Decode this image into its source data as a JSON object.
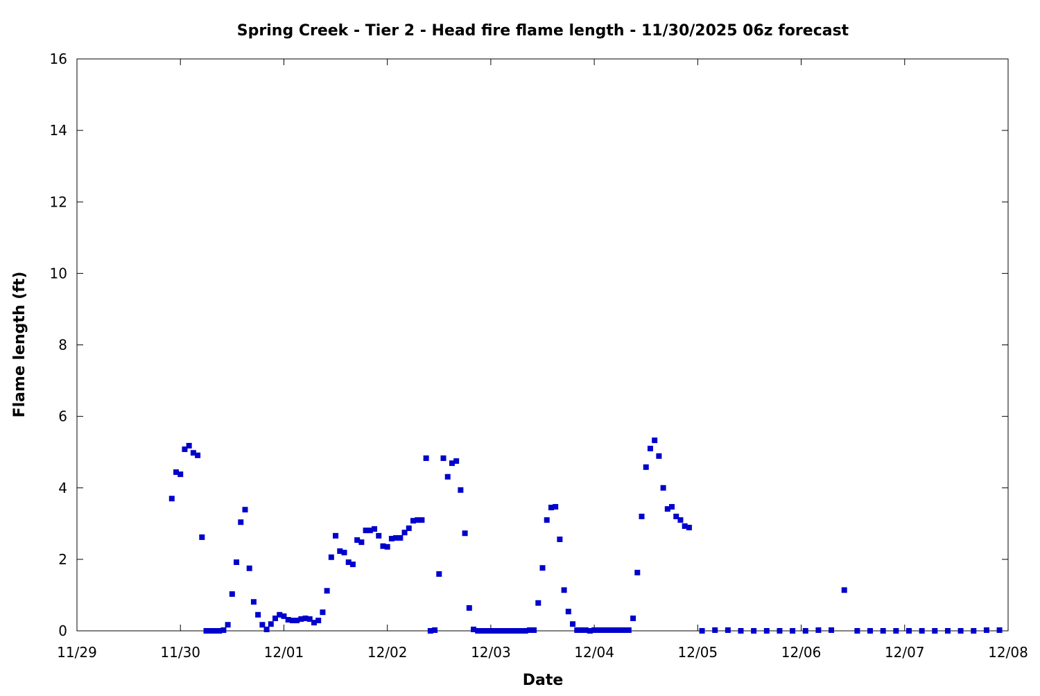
{
  "chart_data": {
    "type": "scatter",
    "title": "Spring Creek - Tier 2 - Head fire flame length - 11/30/2025 06z forecast",
    "xlabel": "Date",
    "ylabel": "Flame length (ft)",
    "xlim": [
      "11/29",
      "12/08"
    ],
    "ylim": [
      0,
      16
    ],
    "x_ticks": [
      "11/29",
      "11/30",
      "12/01",
      "12/02",
      "12/03",
      "12/04",
      "12/05",
      "12/06",
      "12/07",
      "12/08"
    ],
    "y_ticks": [
      "0",
      "2",
      "4",
      "6",
      "8",
      "10",
      "12",
      "14",
      "16"
    ],
    "grid": false,
    "legend": "none",
    "marker": "square",
    "color": "#0000cc",
    "points": [
      [
        "11/29 22:00",
        3.7
      ],
      [
        "11/29 23:00",
        4.44
      ],
      [
        "11/30 00:00",
        4.38
      ],
      [
        "11/30 01:00",
        5.08
      ],
      [
        "11/30 02:00",
        5.18
      ],
      [
        "11/30 03:00",
        4.98
      ],
      [
        "11/30 04:00",
        4.91
      ],
      [
        "11/30 05:00",
        2.62
      ],
      [
        "11/30 06:00",
        0
      ],
      [
        "11/30 07:00",
        0
      ],
      [
        "11/30 08:00",
        0
      ],
      [
        "11/30 09:00",
        0
      ],
      [
        "11/30 10:00",
        0.02
      ],
      [
        "11/30 11:00",
        0.17
      ],
      [
        "11/30 12:00",
        1.03
      ],
      [
        "11/30 13:00",
        1.92
      ],
      [
        "11/30 14:00",
        3.04
      ],
      [
        "11/30 15:00",
        3.39
      ],
      [
        "11/30 16:00",
        1.75
      ],
      [
        "11/30 17:00",
        0.81
      ],
      [
        "11/30 18:00",
        0.45
      ],
      [
        "11/30 19:00",
        0.17
      ],
      [
        "11/30 20:00",
        0.04
      ],
      [
        "11/30 21:00",
        0.19
      ],
      [
        "11/30 22:00",
        0.35
      ],
      [
        "11/30 23:00",
        0.45
      ],
      [
        "12/01 00:00",
        0.41
      ],
      [
        "12/01 01:00",
        0.31
      ],
      [
        "12/01 02:00",
        0.29
      ],
      [
        "12/01 03:00",
        0.29
      ],
      [
        "12/01 04:00",
        0.33
      ],
      [
        "12/01 05:00",
        0.35
      ],
      [
        "12/01 06:00",
        0.33
      ],
      [
        "12/01 07:00",
        0.23
      ],
      [
        "12/01 08:00",
        0.29
      ],
      [
        "12/01 09:00",
        0.52
      ],
      [
        "12/01 10:00",
        1.12
      ],
      [
        "12/01 11:00",
        2.06
      ],
      [
        "12/01 12:00",
        2.66
      ],
      [
        "12/01 13:00",
        2.23
      ],
      [
        "12/01 14:00",
        2.19
      ],
      [
        "12/01 15:00",
        1.92
      ],
      [
        "12/01 16:00",
        1.86
      ],
      [
        "12/01 17:00",
        2.54
      ],
      [
        "12/01 18:00",
        2.48
      ],
      [
        "12/01 19:00",
        2.81
      ],
      [
        "12/01 20:00",
        2.81
      ],
      [
        "12/01 21:00",
        2.85
      ],
      [
        "12/01 22:00",
        2.66
      ],
      [
        "12/01 23:00",
        2.37
      ],
      [
        "12/02 00:00",
        2.35
      ],
      [
        "12/02 01:00",
        2.58
      ],
      [
        "12/02 02:00",
        2.6
      ],
      [
        "12/02 03:00",
        2.6
      ],
      [
        "12/02 04:00",
        2.75
      ],
      [
        "12/02 05:00",
        2.87
      ],
      [
        "12/02 06:00",
        3.08
      ],
      [
        "12/02 07:00",
        3.1
      ],
      [
        "12/02 08:00",
        3.1
      ],
      [
        "12/02 09:00",
        4.83
      ],
      [
        "12/02 10:00",
        0
      ],
      [
        "12/02 11:00",
        0.02
      ],
      [
        "12/02 12:00",
        1.59
      ],
      [
        "12/02 13:00",
        4.83
      ],
      [
        "12/02 14:00",
        4.31
      ],
      [
        "12/02 15:00",
        4.69
      ],
      [
        "12/02 16:00",
        4.75
      ],
      [
        "12/02 17:00",
        3.94
      ],
      [
        "12/02 18:00",
        2.73
      ],
      [
        "12/02 19:00",
        0.64
      ],
      [
        "12/02 20:00",
        0.04
      ],
      [
        "12/02 21:00",
        0
      ],
      [
        "12/02 22:00",
        0
      ],
      [
        "12/02 23:00",
        0
      ],
      [
        "12/03 00:00",
        0
      ],
      [
        "12/03 01:00",
        0
      ],
      [
        "12/03 02:00",
        0
      ],
      [
        "12/03 03:00",
        0
      ],
      [
        "12/03 04:00",
        0
      ],
      [
        "12/03 05:00",
        0
      ],
      [
        "12/03 06:00",
        0
      ],
      [
        "12/03 07:00",
        0
      ],
      [
        "12/03 08:00",
        0
      ],
      [
        "12/03 09:00",
        0.02
      ],
      [
        "12/03 10:00",
        0.02
      ],
      [
        "12/03 11:00",
        0.78
      ],
      [
        "12/03 12:00",
        1.76
      ],
      [
        "12/03 13:00",
        3.1
      ],
      [
        "12/03 14:00",
        3.45
      ],
      [
        "12/03 15:00",
        3.47
      ],
      [
        "12/03 16:00",
        2.56
      ],
      [
        "12/03 17:00",
        1.14
      ],
      [
        "12/03 18:00",
        0.54
      ],
      [
        "12/03 19:00",
        0.19
      ],
      [
        "12/03 20:00",
        0.02
      ],
      [
        "12/03 21:00",
        0.02
      ],
      [
        "12/03 22:00",
        0.02
      ],
      [
        "12/03 23:00",
        0
      ],
      [
        "12/04 00:00",
        0.02
      ],
      [
        "12/04 01:00",
        0.02
      ],
      [
        "12/04 02:00",
        0.02
      ],
      [
        "12/04 03:00",
        0.02
      ],
      [
        "12/04 04:00",
        0.02
      ],
      [
        "12/04 05:00",
        0.02
      ],
      [
        "12/04 06:00",
        0.02
      ],
      [
        "12/04 07:00",
        0.02
      ],
      [
        "12/04 08:00",
        0.02
      ],
      [
        "12/04 09:00",
        0.35
      ],
      [
        "12/04 10:00",
        1.63
      ],
      [
        "12/04 11:00",
        3.2
      ],
      [
        "12/04 12:00",
        4.58
      ],
      [
        "12/04 13:00",
        5.1
      ],
      [
        "12/04 14:00",
        5.33
      ],
      [
        "12/04 15:00",
        4.89
      ],
      [
        "12/04 16:00",
        4.0
      ],
      [
        "12/04 17:00",
        3.41
      ],
      [
        "12/04 18:00",
        3.47
      ],
      [
        "12/04 19:00",
        3.2
      ],
      [
        "12/04 20:00",
        3.1
      ],
      [
        "12/04 21:00",
        2.93
      ],
      [
        "12/04 22:00",
        2.89
      ],
      [
        "12/05 01:00",
        0
      ],
      [
        "12/05 04:00",
        0.02
      ],
      [
        "12/05 07:00",
        0.02
      ],
      [
        "12/05 10:00",
        0
      ],
      [
        "12/05 13:00",
        0
      ],
      [
        "12/05 16:00",
        0
      ],
      [
        "12/05 19:00",
        0
      ],
      [
        "12/05 22:00",
        0
      ],
      [
        "12/06 01:00",
        0
      ],
      [
        "12/06 04:00",
        0.02
      ],
      [
        "12/06 07:00",
        0.02
      ],
      [
        "12/06 10:00",
        1.14
      ],
      [
        "12/06 13:00",
        0
      ],
      [
        "12/06 16:00",
        0
      ],
      [
        "12/06 19:00",
        0
      ],
      [
        "12/06 22:00",
        0
      ],
      [
        "12/07 01:00",
        0
      ],
      [
        "12/07 04:00",
        0
      ],
      [
        "12/07 07:00",
        0
      ],
      [
        "12/07 10:00",
        0
      ],
      [
        "12/07 13:00",
        0
      ],
      [
        "12/07 16:00",
        0
      ],
      [
        "12/07 19:00",
        0.02
      ],
      [
        "12/07 22:00",
        0.02
      ]
    ]
  }
}
